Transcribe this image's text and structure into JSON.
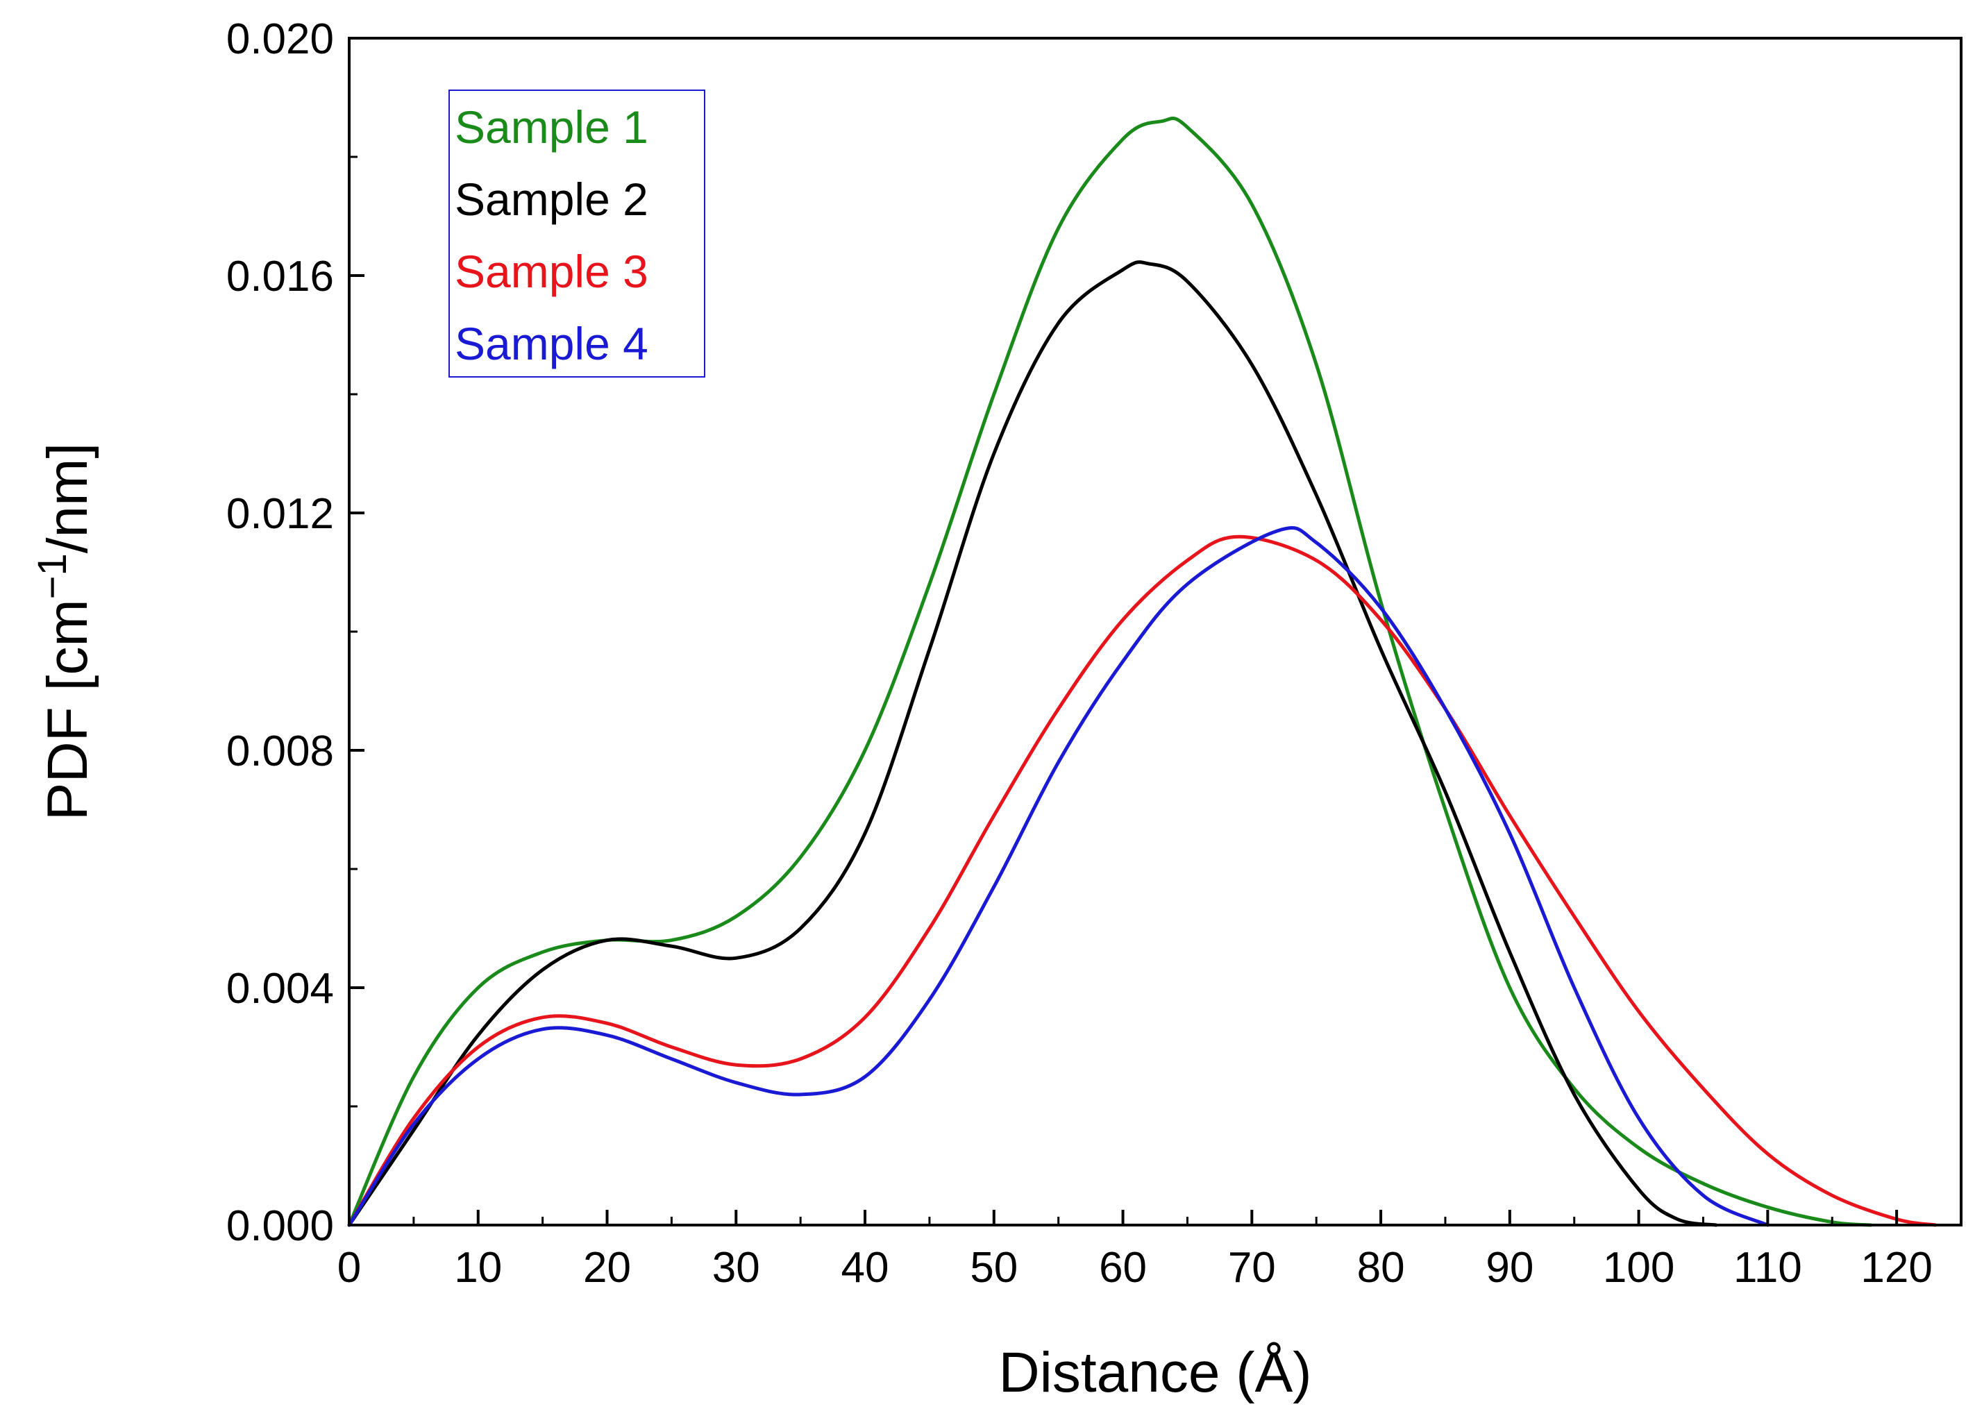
{
  "chart_data": {
    "type": "line",
    "title": "",
    "xlabel": "Distance (Å)",
    "ylabel": {
      "prefix": "PDF  [cm",
      "superscript": "−1",
      "suffix": "/nm]"
    },
    "xlim": [
      0,
      125
    ],
    "ylim": [
      0,
      0.02
    ],
    "xticks": [
      0,
      10,
      20,
      30,
      40,
      50,
      60,
      70,
      80,
      90,
      100,
      110,
      120
    ],
    "xtick_labels": [
      "0",
      "10",
      "20",
      "30",
      "40",
      "50",
      "60",
      "70",
      "80",
      "90",
      "100",
      "110",
      "120"
    ],
    "yticks": [
      0,
      0.004,
      0.008,
      0.012,
      0.016,
      0.02
    ],
    "ytick_labels": [
      "0.000",
      "0.004",
      "0.008",
      "0.012",
      "0.016",
      "0.020"
    ],
    "grid": false,
    "legend_position": "top-left",
    "series": [
      {
        "name": "Sample 1",
        "color": "#1a8a1a",
        "x": [
          0,
          5,
          10,
          15,
          20,
          25,
          30,
          35,
          40,
          45,
          50,
          55,
          60,
          63,
          65,
          70,
          75,
          80,
          85,
          90,
          95,
          100,
          105,
          110,
          115,
          118
        ],
        "y": [
          0,
          0.0025,
          0.004,
          0.0046,
          0.0048,
          0.0048,
          0.0052,
          0.0062,
          0.008,
          0.0108,
          0.014,
          0.0168,
          0.0183,
          0.0186,
          0.0185,
          0.0172,
          0.0145,
          0.0105,
          0.007,
          0.004,
          0.0023,
          0.0013,
          0.0007,
          0.0003,
          5e-05,
          0
        ]
      },
      {
        "name": "Sample 2",
        "color": "#000000",
        "x": [
          0,
          5,
          10,
          15,
          20,
          25,
          30,
          35,
          40,
          45,
          50,
          55,
          60,
          62,
          65,
          70,
          75,
          80,
          85,
          90,
          95,
          100,
          103,
          106
        ],
        "y": [
          0,
          0.0016,
          0.0032,
          0.0043,
          0.0048,
          0.0047,
          0.0045,
          0.005,
          0.0066,
          0.0097,
          0.013,
          0.0152,
          0.0161,
          0.0162,
          0.0159,
          0.0145,
          0.0123,
          0.0097,
          0.0073,
          0.0046,
          0.0022,
          0.0006,
          0.0001,
          0
        ]
      },
      {
        "name": "Sample 3",
        "color": "#e8141c",
        "x": [
          0,
          5,
          10,
          15,
          20,
          25,
          30,
          35,
          40,
          45,
          50,
          55,
          60,
          65,
          69,
          75,
          80,
          85,
          90,
          95,
          100,
          105,
          110,
          115,
          120,
          123
        ],
        "y": [
          0,
          0.0018,
          0.003,
          0.0035,
          0.0034,
          0.003,
          0.0027,
          0.0028,
          0.0035,
          0.005,
          0.0069,
          0.0087,
          0.0102,
          0.0112,
          0.0116,
          0.0112,
          0.0102,
          0.0087,
          0.0069,
          0.0052,
          0.0036,
          0.0023,
          0.0012,
          0.0005,
          0.0001,
          0
        ]
      },
      {
        "name": "Sample 4",
        "color": "#1a1ad4",
        "x": [
          0,
          5,
          10,
          15,
          20,
          25,
          30,
          35,
          40,
          45,
          50,
          55,
          60,
          65,
          72,
          75,
          80,
          85,
          90,
          95,
          100,
          105,
          110
        ],
        "y": [
          0,
          0.0017,
          0.0028,
          0.0033,
          0.0032,
          0.0028,
          0.0024,
          0.0022,
          0.0025,
          0.0038,
          0.0057,
          0.0078,
          0.0095,
          0.0108,
          0.0117,
          0.0115,
          0.0104,
          0.0087,
          0.0066,
          0.004,
          0.0018,
          0.0005,
          0
        ]
      }
    ]
  },
  "colors": {
    "axis": "#000000",
    "background": "#ffffff",
    "legend_border": "#1a1ad4"
  }
}
